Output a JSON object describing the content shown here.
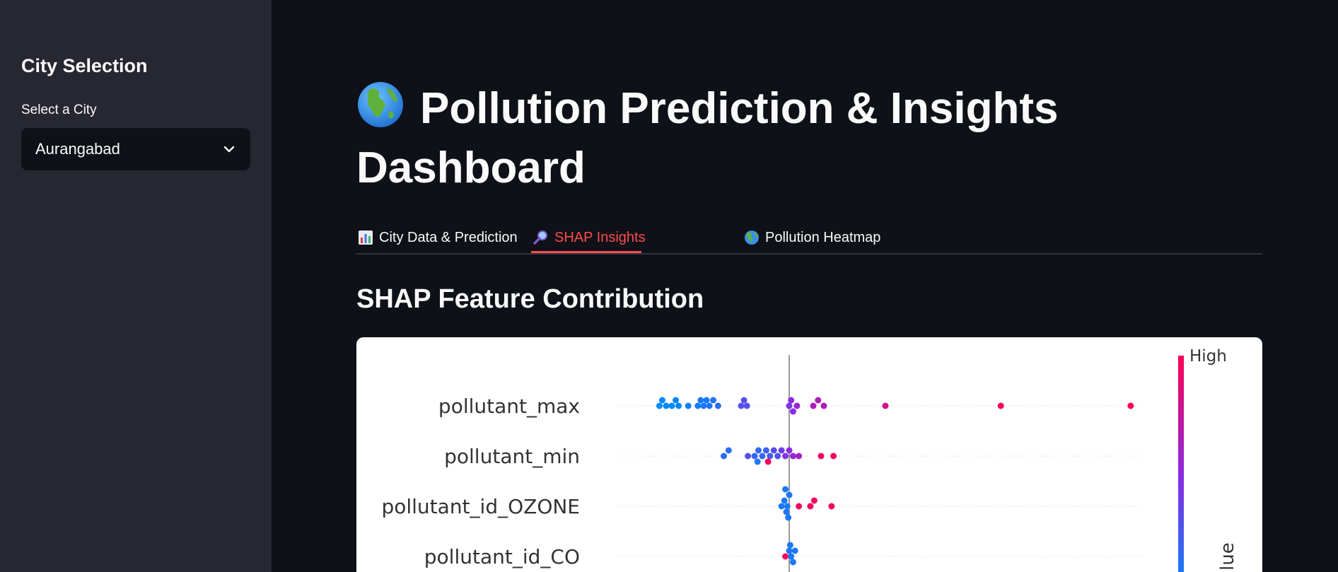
{
  "sidebar": {
    "heading": "City Selection",
    "select_label": "Select a City",
    "selected_city": "Aurangabad"
  },
  "main": {
    "title_line1": "Pollution Prediction & Insights",
    "title_line2": "Dashboard",
    "tabs": [
      {
        "label": "City Data & Prediction",
        "icon": "bar-chart-icon",
        "active": false
      },
      {
        "label": "SHAP Insights",
        "icon": "magnifier-icon",
        "active": true
      },
      {
        "label": "Pollution Heatmap",
        "icon": "globe-icon",
        "active": false
      }
    ],
    "section_title": "SHAP Feature Contribution"
  },
  "colors": {
    "accent": "#ff4b4b",
    "sidebar_bg": "#262730",
    "main_bg": "#0e1117",
    "shap_low": "#008bfb",
    "shap_high": "#ff0052"
  },
  "chart_data": {
    "type": "scatter",
    "colorbar_high_label": "High",
    "colorbar_axis_label_visible": "lue",
    "features": [
      {
        "name": "pollutant_max",
        "points": [
          {
            "shap": -1.35,
            "v": 0.0
          },
          {
            "shap": -1.32,
            "v": 0.0
          },
          {
            "shap": -1.28,
            "v": 0.02
          },
          {
            "shap": -1.22,
            "v": 0.0
          },
          {
            "shap": -1.18,
            "v": 0.03
          },
          {
            "shap": -1.15,
            "v": 0.02
          },
          {
            "shap": -1.05,
            "v": 0.05
          },
          {
            "shap": -0.95,
            "v": 0.08
          },
          {
            "shap": -0.92,
            "v": 0.08
          },
          {
            "shap": -0.89,
            "v": 0.1
          },
          {
            "shap": -0.86,
            "v": 0.1
          },
          {
            "shap": -0.83,
            "v": 0.12
          },
          {
            "shap": -0.79,
            "v": 0.14
          },
          {
            "shap": -0.74,
            "v": 0.15
          },
          {
            "shap": -0.5,
            "v": 0.3
          },
          {
            "shap": -0.47,
            "v": 0.32
          },
          {
            "shap": -0.44,
            "v": 0.3
          },
          {
            "shap": 0.0,
            "v": 0.45
          },
          {
            "shap": 0.02,
            "v": 0.5
          },
          {
            "shap": 0.04,
            "v": 0.5
          },
          {
            "shap": 0.08,
            "v": 0.55
          },
          {
            "shap": 0.25,
            "v": 0.65
          },
          {
            "shap": 0.3,
            "v": 0.65
          },
          {
            "shap": 0.36,
            "v": 0.65
          },
          {
            "shap": 1.0,
            "v": 0.8
          },
          {
            "shap": 2.2,
            "v": 0.97
          },
          {
            "shap": 3.55,
            "v": 1.0
          }
        ]
      },
      {
        "name": "pollutant_min",
        "points": [
          {
            "shap": -0.68,
            "v": 0.15
          },
          {
            "shap": -0.63,
            "v": 0.15
          },
          {
            "shap": -0.43,
            "v": 0.3
          },
          {
            "shap": -0.36,
            "v": 0.2
          },
          {
            "shap": -0.32,
            "v": 0.18
          },
          {
            "shap": -0.28,
            "v": 0.2
          },
          {
            "shap": -0.24,
            "v": 0.22
          },
          {
            "shap": -0.2,
            "v": 0.25
          },
          {
            "shap": -0.16,
            "v": 0.3
          },
          {
            "shap": -0.12,
            "v": 0.3
          },
          {
            "shap": -0.08,
            "v": 0.4
          },
          {
            "shap": -0.04,
            "v": 0.45
          },
          {
            "shap": 0.0,
            "v": 0.5
          },
          {
            "shap": 0.04,
            "v": 0.55
          },
          {
            "shap": 0.1,
            "v": 0.6
          },
          {
            "shap": -0.22,
            "v": 0.95
          },
          {
            "shap": -0.33,
            "v": 0.1
          },
          {
            "shap": 0.33,
            "v": 0.95
          },
          {
            "shap": 0.46,
            "v": 0.95
          }
        ]
      },
      {
        "name": "pollutant_id_OZONE",
        "points": [
          {
            "shap": -0.08,
            "v": 0.1
          },
          {
            "shap": -0.05,
            "v": 0.1
          },
          {
            "shap": -0.03,
            "v": 0.1
          },
          {
            "shap": -0.02,
            "v": 0.1
          },
          {
            "shap": 0.0,
            "v": 0.1
          },
          {
            "shap": -0.01,
            "v": 0.1
          },
          {
            "shap": -0.04,
            "v": 0.1
          },
          {
            "shap": 0.1,
            "v": 0.95
          },
          {
            "shap": 0.22,
            "v": 0.95
          },
          {
            "shap": 0.26,
            "v": 0.95
          },
          {
            "shap": 0.44,
            "v": 0.95
          }
        ]
      },
      {
        "name": "pollutant_id_CO",
        "points": [
          {
            "shap": -0.04,
            "v": 0.95
          },
          {
            "shap": 0.0,
            "v": 0.1
          },
          {
            "shap": 0.02,
            "v": 0.1
          },
          {
            "shap": 0.04,
            "v": 0.1
          },
          {
            "shap": 0.06,
            "v": 0.1
          },
          {
            "shap": 0.01,
            "v": 0.1
          }
        ]
      }
    ]
  }
}
